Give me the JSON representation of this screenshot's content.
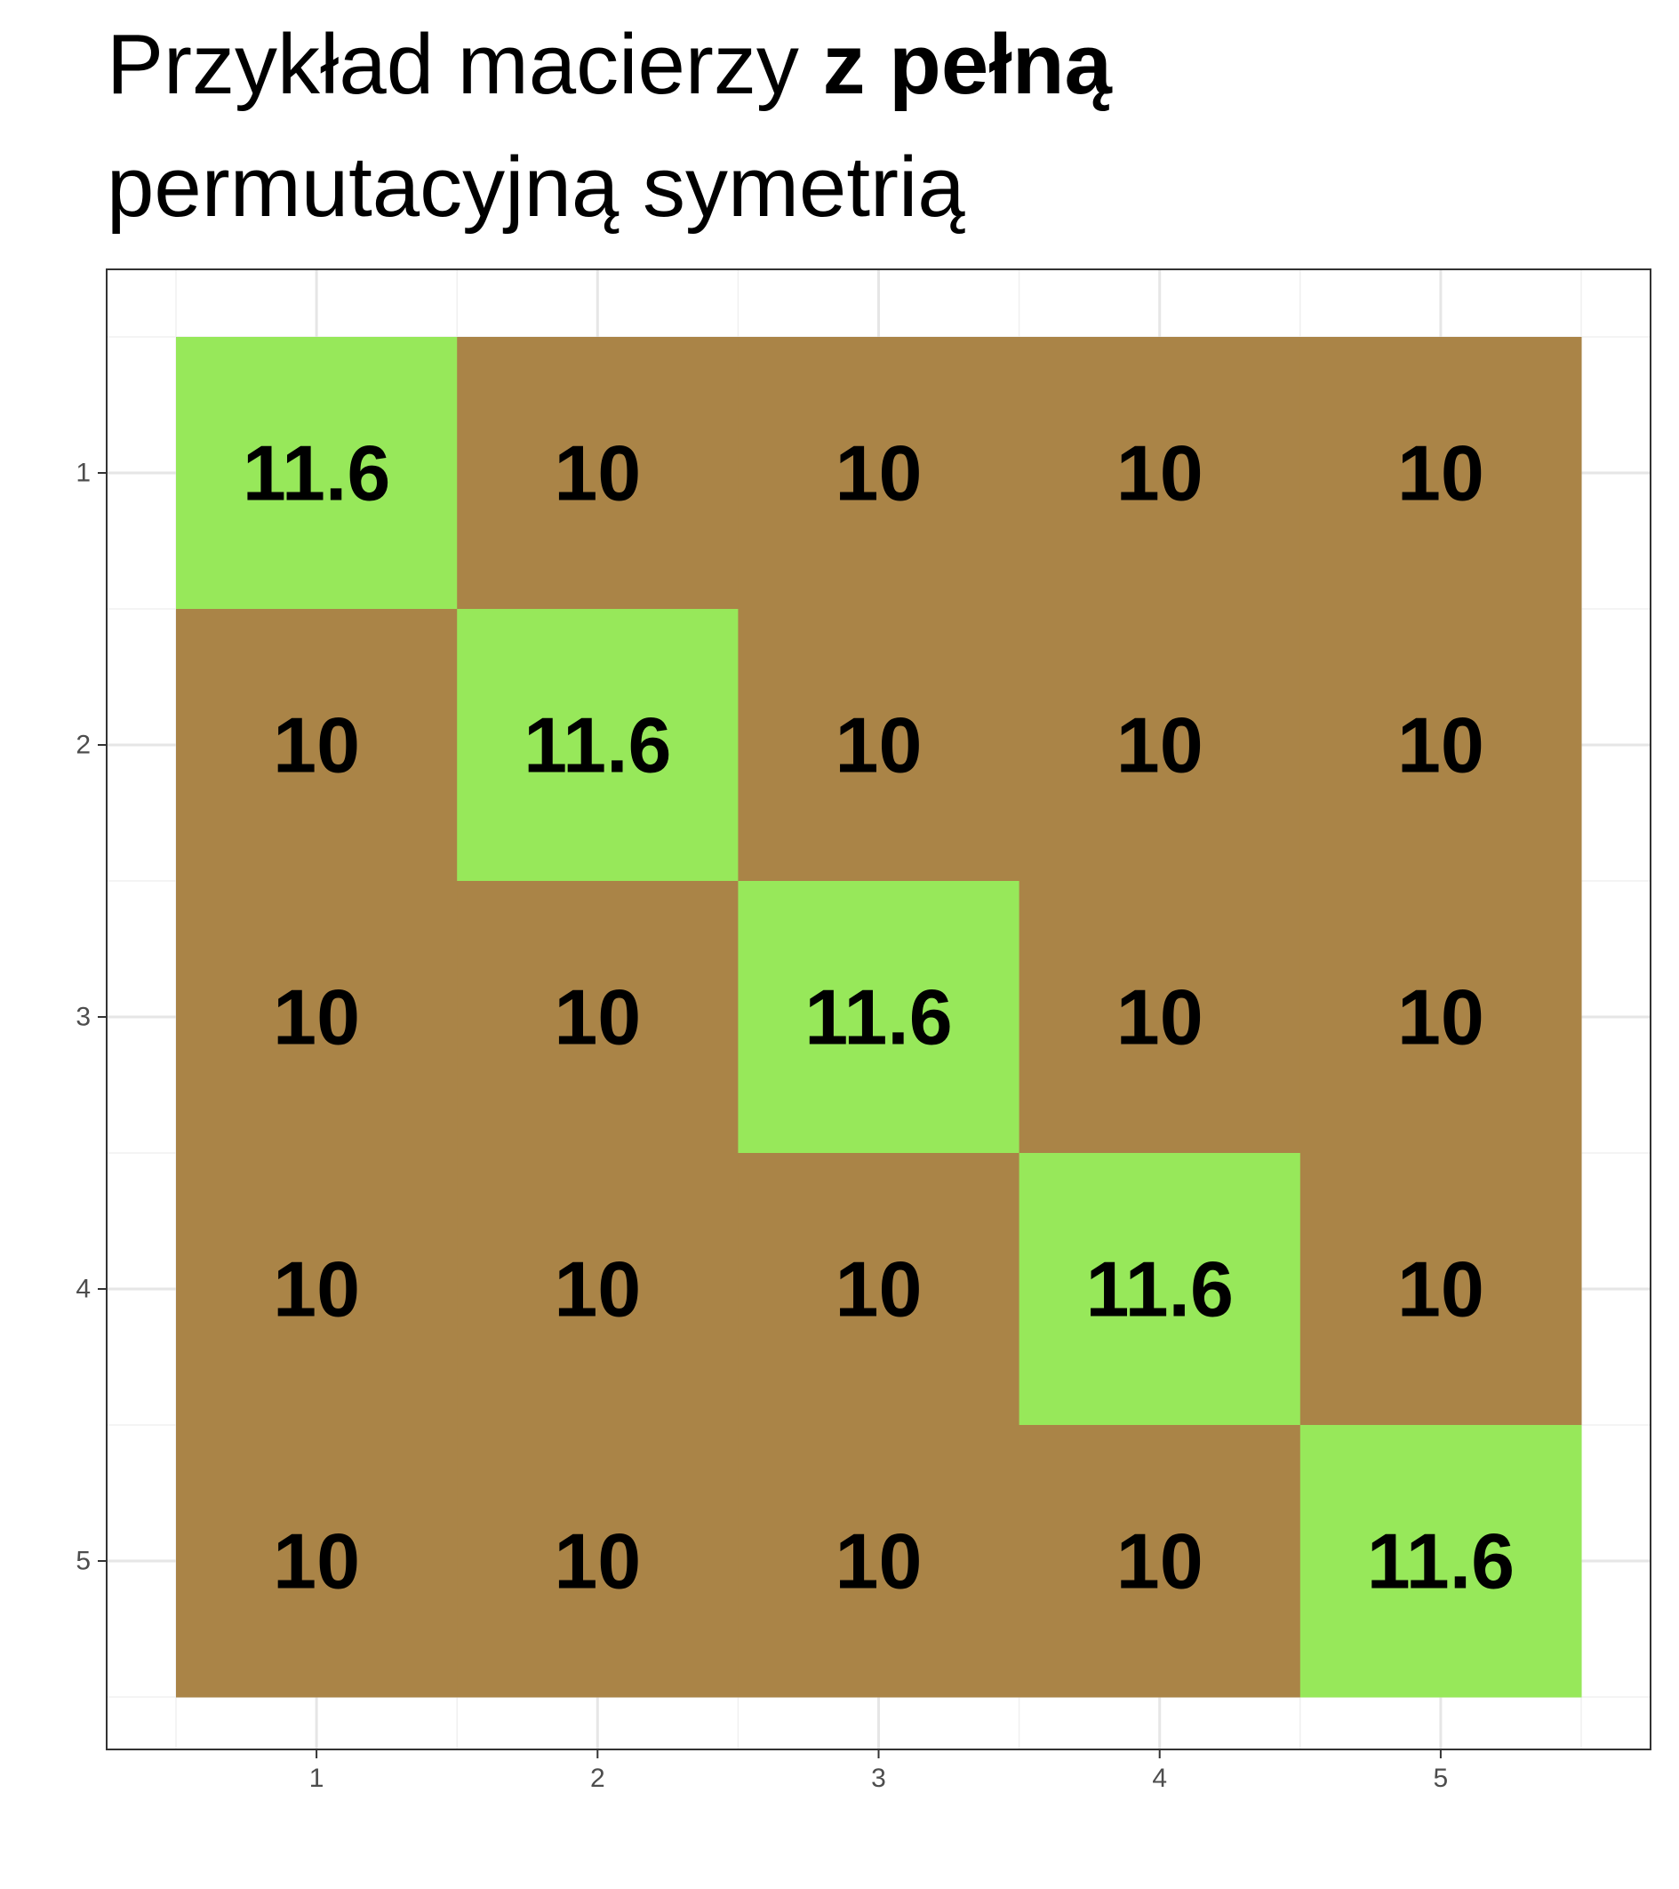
{
  "title": {
    "line1_regular": "Przykład macierzy ",
    "line1_bold": "z pełną",
    "line2": "permutacyjną symetrią"
  },
  "chart_data": {
    "type": "heatmap",
    "x": [
      "1",
      "2",
      "3",
      "4",
      "5"
    ],
    "y": [
      "1",
      "2",
      "3",
      "4",
      "5"
    ],
    "values": [
      [
        11.6,
        10,
        10,
        10,
        10
      ],
      [
        10,
        11.6,
        10,
        10,
        10
      ],
      [
        10,
        10,
        11.6,
        10,
        10
      ],
      [
        10,
        10,
        10,
        11.6,
        10
      ],
      [
        10,
        10,
        10,
        10,
        11.6
      ]
    ],
    "cell_labels": [
      [
        "11.6",
        "10",
        "10",
        "10",
        "10"
      ],
      [
        "10",
        "11.6",
        "10",
        "10",
        "10"
      ],
      [
        "10",
        "10",
        "11.6",
        "10",
        "10"
      ],
      [
        "10",
        "10",
        "10",
        "11.6",
        "10"
      ],
      [
        "10",
        "10",
        "10",
        "10",
        "11.6"
      ]
    ],
    "colors": {
      "diagonal": "#97E85A",
      "off_diagonal": "#AA8447"
    },
    "grid": true,
    "legend": "none",
    "y_axis_direction": "top-to-bottom"
  }
}
